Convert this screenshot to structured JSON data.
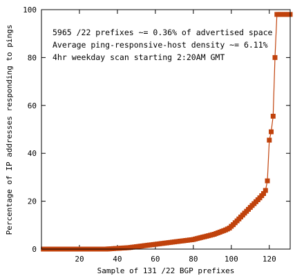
{
  "chart_data": {
    "type": "line",
    "title": "",
    "xlabel": "Sample of 131 /22 BGP prefixes",
    "ylabel": "Percentage of IP addresses responding to pings",
    "xlim": [
      0,
      131
    ],
    "ylim": [
      0,
      100
    ],
    "xticks": [
      20,
      40,
      60,
      80,
      100,
      120
    ],
    "yticks": [
      0,
      20,
      40,
      60,
      80,
      100
    ],
    "grid": false,
    "legend": "none",
    "series_color": "#c0420c",
    "marker": "square",
    "annotations": [
      "5965 /22 prefixes ~= 0.36% of advertised space",
      "Average ping-responsive-host density ~= 6.11%",
      "4hr weekday scan starting 2:20AM GMT"
    ],
    "series": [
      {
        "x": [
          1,
          2,
          3,
          4,
          5,
          6,
          7,
          8,
          9,
          10,
          11,
          12,
          13,
          14,
          15,
          16,
          17,
          18,
          19,
          20,
          21,
          22,
          23,
          24,
          25,
          26,
          27,
          28,
          29,
          30,
          31,
          32,
          33,
          34,
          35,
          36,
          37,
          38,
          39,
          40,
          41,
          42,
          43,
          44,
          45,
          46,
          47,
          48,
          49,
          50,
          51,
          52,
          53,
          54,
          55,
          56,
          57,
          58,
          59,
          60,
          61,
          62,
          63,
          64,
          65,
          66,
          67,
          68,
          69,
          70,
          71,
          72,
          73,
          74,
          75,
          76,
          77,
          78,
          79,
          80,
          81,
          82,
          83,
          84,
          85,
          86,
          87,
          88,
          89,
          90,
          91,
          92,
          93,
          94,
          95,
          96,
          97,
          98,
          99,
          100,
          101,
          102,
          103,
          104,
          105,
          106,
          107,
          108,
          109,
          110,
          111,
          112,
          113,
          114,
          115,
          116,
          117,
          118,
          119,
          120,
          121,
          122,
          123,
          124,
          125,
          126,
          127,
          128,
          129,
          130,
          131
        ],
        "values": [
          0,
          0,
          0,
          0,
          0,
          0,
          0,
          0,
          0,
          0,
          0,
          0,
          0,
          0,
          0,
          0,
          0,
          0,
          0,
          0,
          0,
          0,
          0,
          0,
          0,
          0,
          0,
          0,
          0,
          0,
          0,
          0,
          0,
          0,
          0.05,
          0.1,
          0.15,
          0.2,
          0.25,
          0.3,
          0.35,
          0.4,
          0.45,
          0.5,
          0.55,
          0.6,
          0.7,
          0.8,
          0.9,
          1.0,
          1.1,
          1.2,
          1.3,
          1.4,
          1.5,
          1.6,
          1.7,
          1.8,
          1.9,
          2.0,
          2.1,
          2.2,
          2.3,
          2.4,
          2.5,
          2.6,
          2.7,
          2.8,
          2.9,
          3.0,
          3.1,
          3.2,
          3.3,
          3.4,
          3.5,
          3.6,
          3.7,
          3.8,
          3.9,
          4.0,
          4.2,
          4.4,
          4.6,
          4.8,
          5.0,
          5.2,
          5.4,
          5.6,
          5.8,
          6.0,
          6.2,
          6.5,
          6.8,
          7.1,
          7.4,
          7.7,
          8.0,
          8.4,
          8.8,
          9.5,
          10.2,
          11.0,
          11.8,
          12.6,
          13.4,
          14.2,
          15.0,
          15.8,
          16.6,
          17.4,
          18.2,
          19.0,
          19.8,
          20.6,
          21.4,
          22.3,
          23.2,
          24.5,
          28.5,
          45.5,
          49.0,
          55.5,
          80.0,
          98.0,
          98.0,
          98.0,
          98.0,
          98.0,
          98.0,
          98.0,
          98.0
        ],
        "note": ""
      }
    ]
  }
}
